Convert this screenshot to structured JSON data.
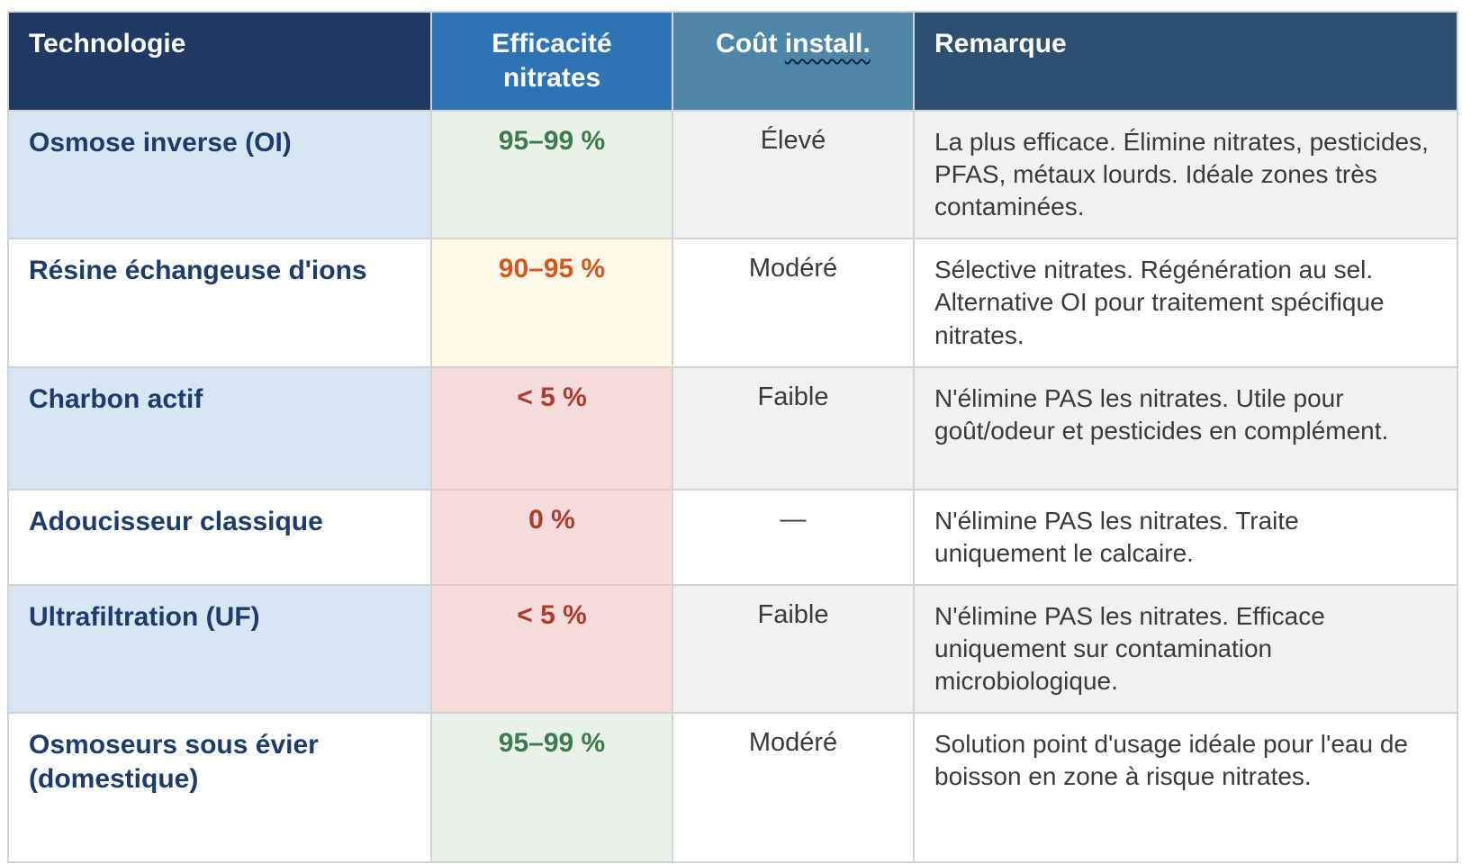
{
  "table": {
    "headers": [
      {
        "id": "technologie",
        "label": "Technologie"
      },
      {
        "id": "efficacite_nitrates",
        "label": "Efficacité nitrates"
      },
      {
        "id": "cout_install",
        "label_plain": "Coût ",
        "label_wavy_underlined": "install."
      },
      {
        "id": "remarque",
        "label": "Remarque"
      }
    ],
    "rows": [
      {
        "technology": "Osmose inverse (OI)",
        "efficiency": "95–99 %",
        "efficiency_level": "good",
        "cost": "Élevé",
        "remark": "La plus efficace. Élimine nitrates, pesticides, PFAS, métaux lourds. Idéale zones très contaminées."
      },
      {
        "technology": "Résine échangeuse d'ions",
        "efficiency": "90–95 %",
        "efficiency_level": "medium",
        "cost": "Modéré",
        "remark": "Sélective nitrates. Régénération au sel. Alternative OI pour traitement spécifique nitrates."
      },
      {
        "technology": "Charbon actif",
        "efficiency": "< 5 %",
        "efficiency_level": "bad",
        "cost": "Faible",
        "remark": "N'élimine PAS les nitrates. Utile pour goût/odeur et pesticides en complément."
      },
      {
        "technology": "Adoucisseur classique",
        "efficiency": "0 %",
        "efficiency_level": "bad",
        "cost": "—",
        "remark": "N'élimine PAS les nitrates. Traite uniquement le calcaire."
      },
      {
        "technology": "Ultrafiltration (UF)",
        "efficiency": "< 5 %",
        "efficiency_level": "bad",
        "cost": "Faible",
        "remark": "N'élimine PAS les nitrates. Efficace uniquement sur contamination microbiologique."
      },
      {
        "technology": "Osmoseurs sous évier (domestique)",
        "efficiency": "95–99 %",
        "efficiency_level": "good",
        "cost": "Modéré",
        "remark": "Solution point d'usage idéale pour l'eau de boisson en zone à risque nitrates."
      }
    ],
    "colors": {
      "header_technologie_bg": "#1f3864",
      "header_efficacite_bg": "#2e74b5",
      "header_cout_bg": "#4e86a8",
      "header_remarque_bg": "#2e5070",
      "header_text": "#ffffff",
      "technology_text": "#1d3c6e",
      "technology_row_alt_bg": "#d8e6f4",
      "efficiency_good_text": "#3a7d4b",
      "efficiency_good_bg": "#e9f1ea",
      "efficiency_medium_text": "#d4571c",
      "efficiency_medium_bg": "#fdf8e7",
      "efficiency_bad_text": "#b03a2e",
      "efficiency_bad_bg": "#f5dcda",
      "row_alt_gray_bg": "#f1f1f1",
      "body_text": "#3a3a3a",
      "grid_border": "#d3d3d3"
    }
  }
}
